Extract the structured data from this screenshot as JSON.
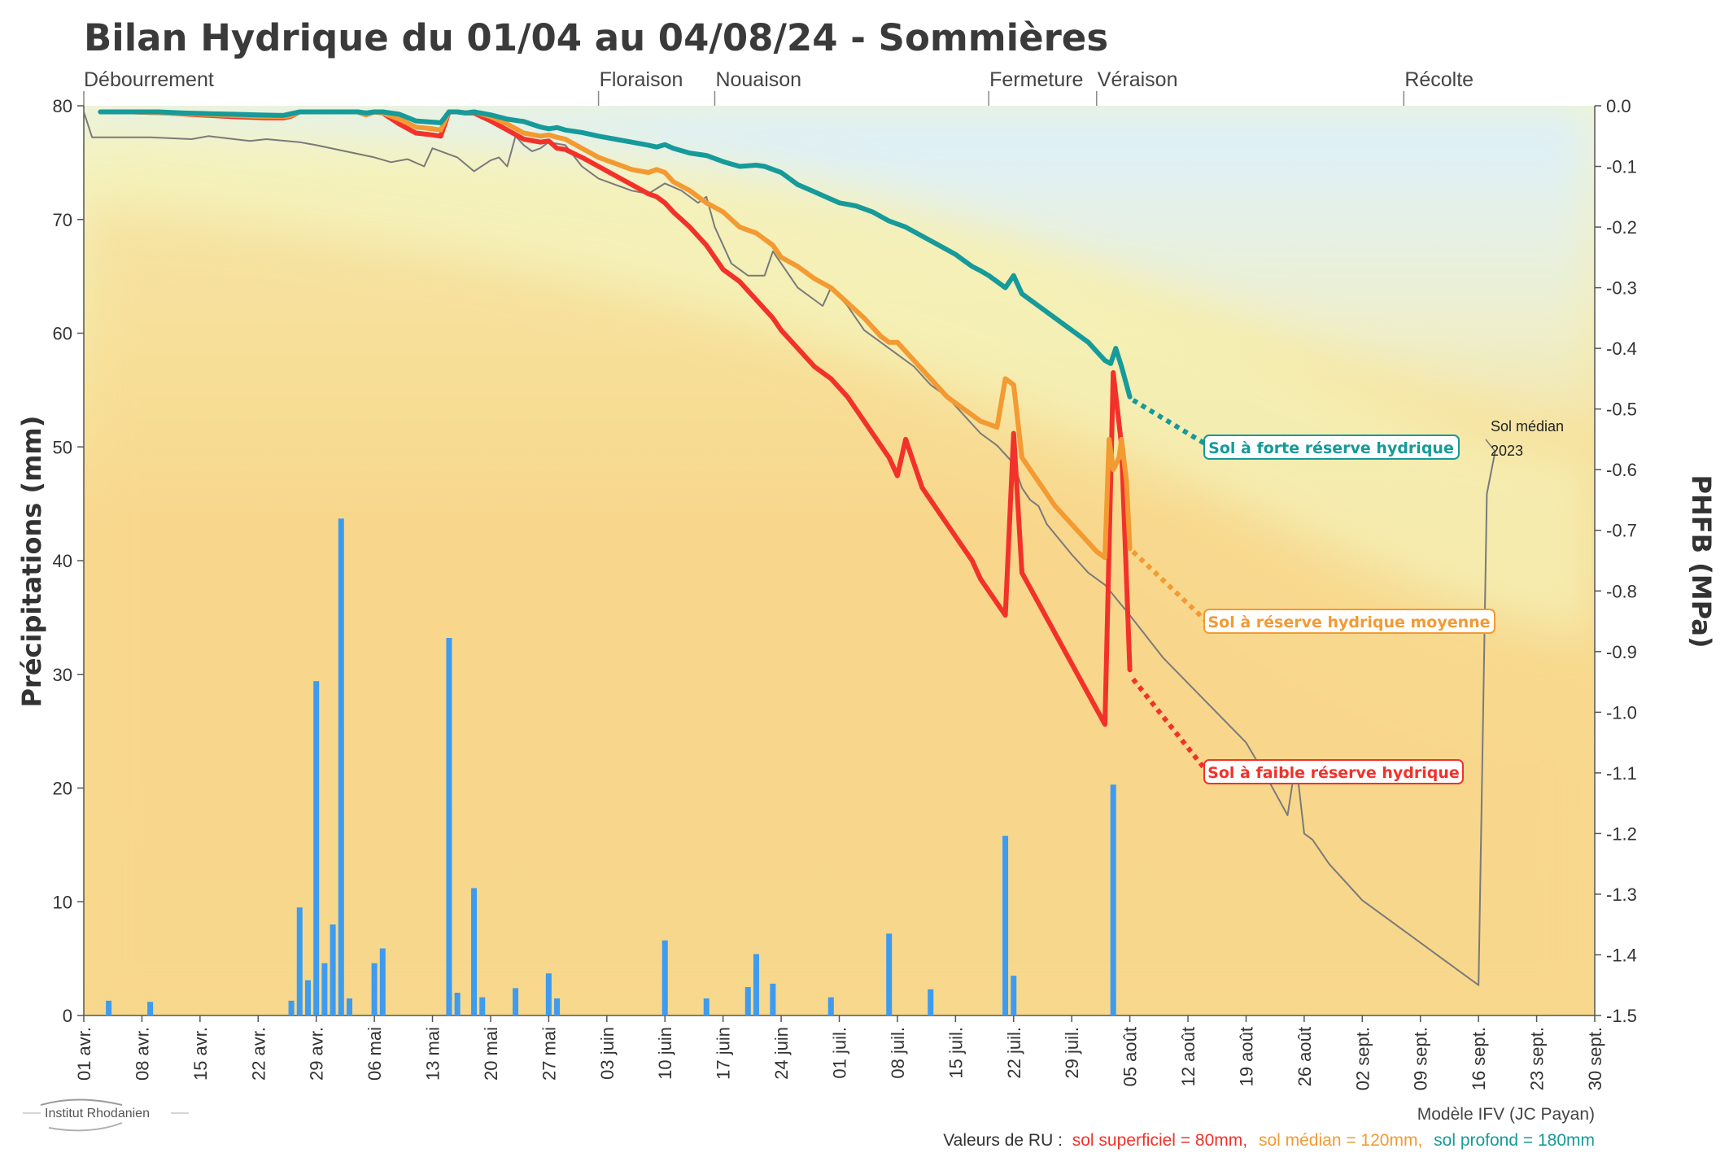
{
  "chart_data": {
    "type": "line",
    "title": "Bilan Hydrique du 01/04 au 04/08/24 - Sommières",
    "ylabel_left": "Précipitations (mm)",
    "ylabel_right": "PHFB (MPa)",
    "y_left_range": [
      0,
      80
    ],
    "y_left_ticks": [
      "0",
      "10",
      "20",
      "30",
      "40",
      "50",
      "60",
      "70",
      "80"
    ],
    "y_right_range": [
      -1.5,
      0.0
    ],
    "y_right_ticks": [
      "0.0",
      "-0.1",
      "-0.2",
      "-0.3",
      "-0.4",
      "-0.5",
      "-0.6",
      "-0.7",
      "-0.8",
      "-0.9",
      "-1.0",
      "-1.1",
      "-1.2",
      "-1.3",
      "-1.4",
      "-1.5"
    ],
    "x_day_range": [
      0,
      182
    ],
    "x_tick_labels": [
      "01 avr.",
      "08 avr.",
      "15 avr.",
      "22 avr.",
      "29 avr.",
      "06 mai",
      "13 mai",
      "20 mai",
      "27 mai",
      "03 juin",
      "10 juin",
      "17 juin",
      "24 juin",
      "01 juil.",
      "08 juil.",
      "15 juil.",
      "22 juil.",
      "29 juil.",
      "05 août",
      "12 août",
      "19 août",
      "26 août",
      "02 sept.",
      "09 sept.",
      "16 sept.",
      "23 sept.",
      "30 sept."
    ],
    "x_tick_days": [
      0,
      7,
      14,
      21,
      28,
      35,
      42,
      49,
      56,
      63,
      70,
      77,
      84,
      91,
      98,
      105,
      112,
      119,
      126,
      133,
      140,
      147,
      154,
      161,
      168,
      175,
      182
    ],
    "stages": [
      {
        "label": "Débourrement",
        "day": 0
      },
      {
        "label": "Floraison",
        "day": 62
      },
      {
        "label": "Nouaison",
        "day": 76
      },
      {
        "label": "Fermeture",
        "day": 109
      },
      {
        "label": "Véraison",
        "day": 122
      },
      {
        "label": "Récolte",
        "day": 159
      }
    ],
    "precipitation": {
      "name": "Précipitations",
      "color": "#3d9bf0",
      "days": [
        3,
        8,
        25,
        26,
        27,
        28,
        29,
        30,
        31,
        32,
        35,
        36,
        44,
        45,
        47,
        48,
        52,
        56,
        57,
        70,
        75,
        80,
        81,
        83,
        90,
        97,
        102,
        111,
        112,
        124
      ],
      "values": [
        1.3,
        1.2,
        1.3,
        9.5,
        3.1,
        29.4,
        4.6,
        8.0,
        43.7,
        1.5,
        4.6,
        5.9,
        33.2,
        2.0,
        11.2,
        1.6,
        2.4,
        3.7,
        1.5,
        6.6,
        1.5,
        2.5,
        5.4,
        2.8,
        1.6,
        7.2,
        2.3,
        15.8,
        3.5,
        20.3
      ]
    },
    "series": [
      {
        "name": "Sol à forte réserve hydrique",
        "color": "#169a9a",
        "days": [
          2,
          6,
          9,
          12,
          15,
          18,
          21,
          24,
          25,
          26,
          28,
          31,
          33,
          34,
          35,
          36,
          38,
          40,
          43,
          44,
          45,
          46,
          47,
          49,
          51,
          53,
          55,
          56,
          57,
          58,
          60,
          62,
          64,
          66,
          68,
          69,
          70,
          71,
          73,
          75,
          77,
          78,
          79,
          81,
          82,
          84,
          86,
          88,
          91,
          93,
          95,
          97,
          99,
          101,
          103,
          105,
          106,
          107,
          108,
          109,
          110,
          111,
          112,
          113,
          115,
          117,
          119,
          121,
          122,
          123,
          123.7,
          124.3,
          125,
          126
        ],
        "values": [
          -0.01,
          -0.01,
          -0.01,
          -0.012,
          -0.013,
          -0.014,
          -0.015,
          -0.016,
          -0.013,
          -0.01,
          -0.01,
          -0.01,
          -0.01,
          -0.012,
          -0.01,
          -0.01,
          -0.014,
          -0.025,
          -0.028,
          -0.01,
          -0.01,
          -0.012,
          -0.01,
          -0.015,
          -0.022,
          -0.026,
          -0.035,
          -0.038,
          -0.036,
          -0.04,
          -0.044,
          -0.05,
          -0.055,
          -0.06,
          -0.065,
          -0.068,
          -0.064,
          -0.07,
          -0.078,
          -0.082,
          -0.092,
          -0.096,
          -0.1,
          -0.098,
          -0.1,
          -0.11,
          -0.13,
          -0.142,
          -0.16,
          -0.165,
          -0.175,
          -0.19,
          -0.2,
          -0.215,
          -0.23,
          -0.245,
          -0.255,
          -0.265,
          -0.272,
          -0.28,
          -0.29,
          -0.3,
          -0.28,
          -0.31,
          -0.33,
          -0.35,
          -0.37,
          -0.39,
          -0.405,
          -0.42,
          -0.425,
          -0.4,
          -0.43,
          -0.48
        ]
      },
      {
        "name": "Sol à réserve hydrique moyenne",
        "color": "#f39a32",
        "days": [
          2,
          6,
          10,
          14,
          18,
          22,
          24,
          25,
          26,
          28,
          31,
          33,
          34,
          35,
          36,
          38,
          40,
          42,
          43,
          44,
          45,
          46,
          47,
          49,
          51,
          53,
          55,
          56,
          57,
          58,
          60,
          62,
          64,
          66,
          68,
          69,
          70,
          71,
          73,
          75,
          77,
          79,
          81,
          83,
          84,
          86,
          88,
          90,
          92,
          94,
          96,
          97,
          98,
          100,
          102,
          104,
          106,
          107,
          108,
          110,
          111,
          112,
          113,
          115,
          117,
          119,
          121,
          122,
          123,
          123.5,
          124,
          124.7,
          125,
          125.6,
          126
        ],
        "values": [
          -0.01,
          -0.01,
          -0.012,
          -0.014,
          -0.016,
          -0.018,
          -0.018,
          -0.016,
          -0.01,
          -0.01,
          -0.01,
          -0.01,
          -0.015,
          -0.01,
          -0.012,
          -0.022,
          -0.035,
          -0.038,
          -0.04,
          -0.01,
          -0.01,
          -0.012,
          -0.01,
          -0.018,
          -0.03,
          -0.045,
          -0.05,
          -0.048,
          -0.052,
          -0.055,
          -0.07,
          -0.085,
          -0.095,
          -0.105,
          -0.11,
          -0.105,
          -0.11,
          -0.125,
          -0.14,
          -0.16,
          -0.175,
          -0.2,
          -0.21,
          -0.23,
          -0.25,
          -0.265,
          -0.285,
          -0.3,
          -0.325,
          -0.35,
          -0.38,
          -0.39,
          -0.39,
          -0.42,
          -0.45,
          -0.48,
          -0.5,
          -0.51,
          -0.52,
          -0.53,
          -0.45,
          -0.46,
          -0.58,
          -0.62,
          -0.66,
          -0.69,
          -0.72,
          -0.735,
          -0.745,
          -0.55,
          -0.6,
          -0.58,
          -0.55,
          -0.62,
          -0.73
        ]
      },
      {
        "name": "Sol à faible réserve hydrique",
        "color": "#f2322a",
        "days": [
          2,
          6,
          10,
          14,
          18,
          22,
          24,
          25,
          26,
          28,
          31,
          33,
          34,
          35,
          36,
          38,
          40,
          42,
          43,
          44,
          45,
          46,
          47,
          49,
          51,
          53,
          55,
          56,
          57,
          58,
          60,
          62,
          64,
          66,
          68,
          69,
          70,
          71,
          73,
          75,
          77,
          79,
          81,
          83,
          84,
          86,
          88,
          90,
          92,
          94,
          96,
          97,
          98,
          99,
          101,
          103,
          105,
          107,
          108,
          110,
          111,
          112,
          113,
          115,
          117,
          119,
          121,
          123,
          124,
          125,
          126
        ],
        "values": [
          -0.01,
          -0.01,
          -0.012,
          -0.015,
          -0.018,
          -0.02,
          -0.02,
          -0.017,
          -0.01,
          -0.01,
          -0.01,
          -0.01,
          -0.015,
          -0.01,
          -0.012,
          -0.03,
          -0.045,
          -0.048,
          -0.05,
          -0.01,
          -0.01,
          -0.012,
          -0.012,
          -0.025,
          -0.04,
          -0.055,
          -0.06,
          -0.058,
          -0.07,
          -0.072,
          -0.085,
          -0.1,
          -0.115,
          -0.13,
          -0.145,
          -0.15,
          -0.16,
          -0.175,
          -0.2,
          -0.23,
          -0.27,
          -0.29,
          -0.32,
          -0.35,
          -0.37,
          -0.4,
          -0.43,
          -0.45,
          -0.48,
          -0.52,
          -0.56,
          -0.58,
          -0.61,
          -0.55,
          -0.63,
          -0.67,
          -0.71,
          -0.75,
          -0.78,
          -0.82,
          -0.84,
          -0.54,
          -0.77,
          -0.82,
          -0.87,
          -0.92,
          -0.97,
          -1.02,
          -0.44,
          -0.56,
          -0.93
        ]
      },
      {
        "name": "Sol médian 2023",
        "color": "#7a7a7a",
        "days": [
          0,
          1,
          8,
          13,
          15,
          20,
          22,
          26,
          28,
          35,
          37,
          39,
          41,
          42,
          45,
          47,
          49,
          50,
          51,
          52,
          53,
          54,
          55,
          56,
          58,
          60,
          62,
          64,
          66,
          68,
          70,
          72,
          74,
          75,
          76,
          78,
          80,
          82,
          83,
          84,
          86,
          88,
          89,
          90,
          92,
          94,
          96,
          98,
          100,
          102,
          104,
          106,
          108,
          110,
          112,
          113,
          114,
          115,
          116,
          119,
          121,
          123,
          126,
          130,
          135,
          140,
          143,
          145,
          146,
          147,
          148,
          150,
          154,
          156,
          160,
          164,
          166,
          168,
          169,
          170
        ],
        "values": [
          -0.01,
          -0.052,
          -0.052,
          -0.055,
          -0.05,
          -0.058,
          -0.055,
          -0.06,
          -0.065,
          -0.085,
          -0.093,
          -0.088,
          -0.1,
          -0.07,
          -0.085,
          -0.108,
          -0.09,
          -0.085,
          -0.1,
          -0.05,
          -0.065,
          -0.075,
          -0.07,
          -0.06,
          -0.065,
          -0.1,
          -0.12,
          -0.13,
          -0.14,
          -0.145,
          -0.128,
          -0.14,
          -0.16,
          -0.15,
          -0.2,
          -0.26,
          -0.28,
          -0.28,
          -0.24,
          -0.26,
          -0.3,
          -0.32,
          -0.33,
          -0.3,
          -0.33,
          -0.37,
          -0.39,
          -0.41,
          -0.43,
          -0.46,
          -0.48,
          -0.51,
          -0.54,
          -0.56,
          -0.59,
          -0.63,
          -0.65,
          -0.66,
          -0.69,
          -0.74,
          -0.77,
          -0.79,
          -0.84,
          -0.91,
          -0.98,
          -1.05,
          -1.12,
          -1.17,
          -1.08,
          -1.2,
          -1.21,
          -1.25,
          -1.31,
          -1.33,
          -1.37,
          -1.41,
          -1.43,
          -1.45,
          -0.64,
          -0.57
        ]
      }
    ],
    "projections": [
      {
        "name": "Sol à forte réserve hydrique",
        "from": [
          126,
          -0.48
        ],
        "to": [
          136,
          -0.565
        ]
      },
      {
        "name": "Sol à réserve hydrique moyenne",
        "from": [
          126,
          -0.73
        ],
        "to": [
          136,
          -0.86
        ]
      },
      {
        "name": "Sol à faible réserve hydrique",
        "from": [
          126,
          -0.94
        ],
        "to": [
          136,
          -1.11
        ]
      }
    ],
    "legend_placement": "inline callouts at the right end of each curve",
    "grid": false
  },
  "callouts": {
    "forte": "Sol à forte réserve hydrique",
    "moyenne": "Sol à réserve hydrique moyenne",
    "faible": "Sol à faible réserve hydrique",
    "median_line1": "Sol médian",
    "median_line2": "2023"
  },
  "footer": {
    "model": "Modèle IFV (JC Payan)",
    "ru_prefix": "Valeurs de RU :",
    "ru_superficiel": "sol superficiel = 80mm,",
    "ru_median": "sol médian = 120mm,",
    "ru_profond": "sol profond = 180mm"
  },
  "logo": {
    "text": "Institut Rhodanien"
  },
  "colors": {
    "forte": "#169a9a",
    "moyenne": "#f39a32",
    "faible": "#f2322a",
    "median": "#7a7a7a",
    "rain": "#3d9bf0"
  }
}
